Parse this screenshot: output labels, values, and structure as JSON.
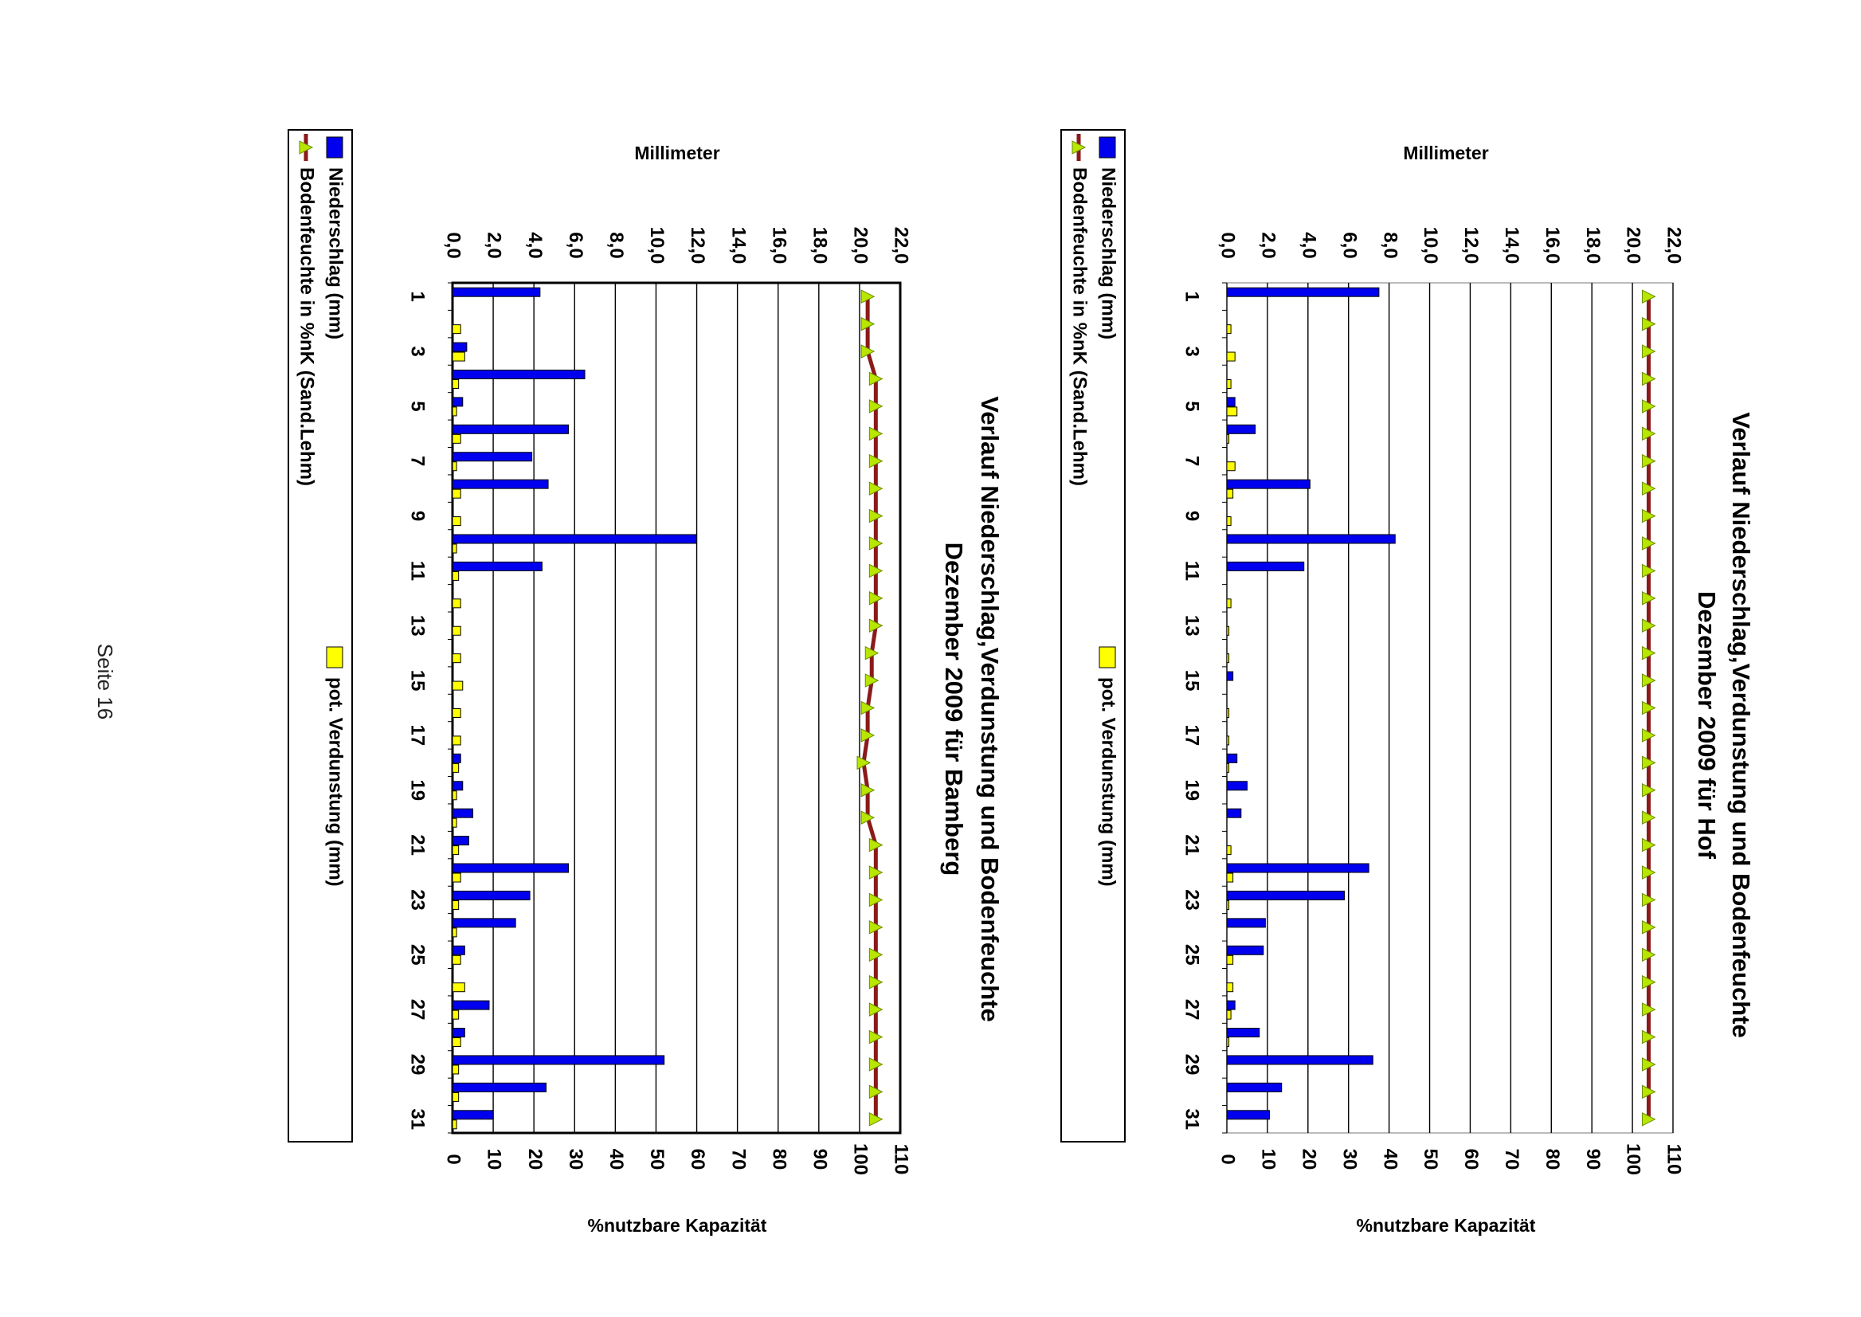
{
  "page": {
    "label": "Seite 16"
  },
  "colors": {
    "niederschlag": "#0000ee",
    "verdunstung": "#ffff00",
    "bodenfeuchte": "#8b1a1a",
    "marker": "#b8e600",
    "grid": "#000000"
  },
  "chart_data": [
    {
      "type": "bar",
      "title_line1": "Verlauf Niederschlag,Verdunstung und Bodenfeuchte",
      "title_line2": "Dezember 2009 für Hof",
      "ylabel_left": "Millimeter",
      "ylabel_right": "%nutzbare Kapazität",
      "ylim_mm": [
        0,
        22
      ],
      "ylim_pct": [
        0,
        110
      ],
      "mm_ticks": [
        "0,0",
        "2,0",
        "4,0",
        "6,0",
        "8,0",
        "10,0",
        "12,0",
        "14,0",
        "16,0",
        "18,0",
        "20,0",
        "22,0"
      ],
      "pct_ticks": [
        "0",
        "10",
        "20",
        "30",
        "40",
        "50",
        "60",
        "70",
        "80",
        "90",
        "100",
        "110"
      ],
      "x_ticks": [
        "1",
        "3",
        "5",
        "7",
        "9",
        "11",
        "13",
        "15",
        "17",
        "19",
        "21",
        "23",
        "25",
        "27",
        "29",
        "31"
      ],
      "legend": {
        "niederschlag": "Niederschlag (mm)",
        "verdunstung": "pot. Verdunstung (mm)",
        "bodenfeuchte": "Bodenfeuchte in %nK (Sand.Lehm)"
      },
      "days": [
        1,
        2,
        3,
        4,
        5,
        6,
        7,
        8,
        9,
        10,
        11,
        12,
        13,
        14,
        15,
        16,
        17,
        18,
        19,
        20,
        21,
        22,
        23,
        24,
        25,
        26,
        27,
        28,
        29,
        30,
        31
      ],
      "niederschlag": [
        7.5,
        0,
        0,
        0,
        0.4,
        1.4,
        0,
        4.1,
        0,
        8.3,
        3.8,
        0,
        0,
        0,
        0.3,
        0,
        0,
        0.5,
        1.0,
        0.7,
        0,
        7.0,
        5.8,
        1.9,
        1.8,
        0,
        0.4,
        1.6,
        7.2,
        2.7,
        2.1
      ],
      "verdunstung": [
        0,
        0.2,
        0.4,
        0.2,
        0.5,
        0.1,
        0.4,
        0.3,
        0.2,
        0,
        0,
        0.2,
        0.1,
        0.1,
        0,
        0.1,
        0.1,
        0.1,
        0,
        0,
        0.2,
        0.3,
        0.1,
        0,
        0.3,
        0.3,
        0.2,
        0.1,
        0,
        0,
        0
      ],
      "bodenfeuchte": [
        104,
        104,
        104,
        104,
        104,
        104,
        104,
        104,
        104,
        104,
        104,
        104,
        104,
        104,
        104,
        104,
        104,
        104,
        104,
        104,
        104,
        104,
        104,
        104,
        104,
        104,
        104,
        104,
        104,
        104,
        104
      ]
    },
    {
      "type": "bar",
      "title_line1": "Verlauf Niederschlag,Verdunstung und Bodenfeuchte",
      "title_line2": "Dezember 2009 für Bamberg",
      "ylabel_left": "Millimeter",
      "ylabel_right": "%nutzbare Kapazität",
      "ylim_mm": [
        0,
        22
      ],
      "ylim_pct": [
        0,
        110
      ],
      "mm_ticks": [
        "0,0",
        "2,0",
        "4,0",
        "6,0",
        "8,0",
        "10,0",
        "12,0",
        "14,0",
        "16,0",
        "18,0",
        "20,0",
        "22,0"
      ],
      "pct_ticks": [
        "0",
        "10",
        "20",
        "30",
        "40",
        "50",
        "60",
        "70",
        "80",
        "90",
        "100",
        "110"
      ],
      "x_ticks": [
        "1",
        "3",
        "5",
        "7",
        "9",
        "11",
        "13",
        "15",
        "17",
        "19",
        "21",
        "23",
        "25",
        "27",
        "29",
        "31"
      ],
      "legend": {
        "niederschlag": "Niederschlag (mm)",
        "verdunstung": "pot. Verdunstung (mm)",
        "bodenfeuchte": "Bodenfeuchte in %nK (Sand.Lehm)"
      },
      "days": [
        1,
        2,
        3,
        4,
        5,
        6,
        7,
        8,
        9,
        10,
        11,
        12,
        13,
        14,
        15,
        16,
        17,
        18,
        19,
        20,
        21,
        22,
        23,
        24,
        25,
        26,
        27,
        28,
        29,
        30,
        31
      ],
      "niederschlag": [
        4.3,
        0,
        0.7,
        6.5,
        0.5,
        5.7,
        3.9,
        4.7,
        0,
        12.0,
        4.4,
        0,
        0,
        0,
        0,
        0,
        0,
        0.4,
        0.5,
        1.0,
        0.8,
        5.7,
        3.8,
        3.1,
        0.6,
        0,
        1.8,
        0.6,
        10.4,
        4.6,
        2.0
      ],
      "verdunstung": [
        0,
        0.4,
        0.6,
        0.3,
        0.2,
        0.4,
        0.2,
        0.4,
        0.4,
        0.2,
        0.3,
        0.4,
        0.4,
        0.4,
        0.5,
        0.4,
        0.4,
        0.3,
        0.2,
        0.2,
        0.3,
        0.4,
        0.3,
        0.2,
        0.4,
        0.6,
        0.3,
        0.4,
        0.3,
        0.3,
        0.2
      ],
      "bodenfeuchte": [
        102,
        102,
        102,
        104,
        104,
        104,
        104,
        104,
        104,
        104,
        104,
        104,
        104,
        103,
        103,
        102,
        102,
        101,
        102,
        102,
        104,
        104,
        104,
        104,
        104,
        104,
        104,
        104,
        104,
        104,
        104
      ]
    }
  ]
}
